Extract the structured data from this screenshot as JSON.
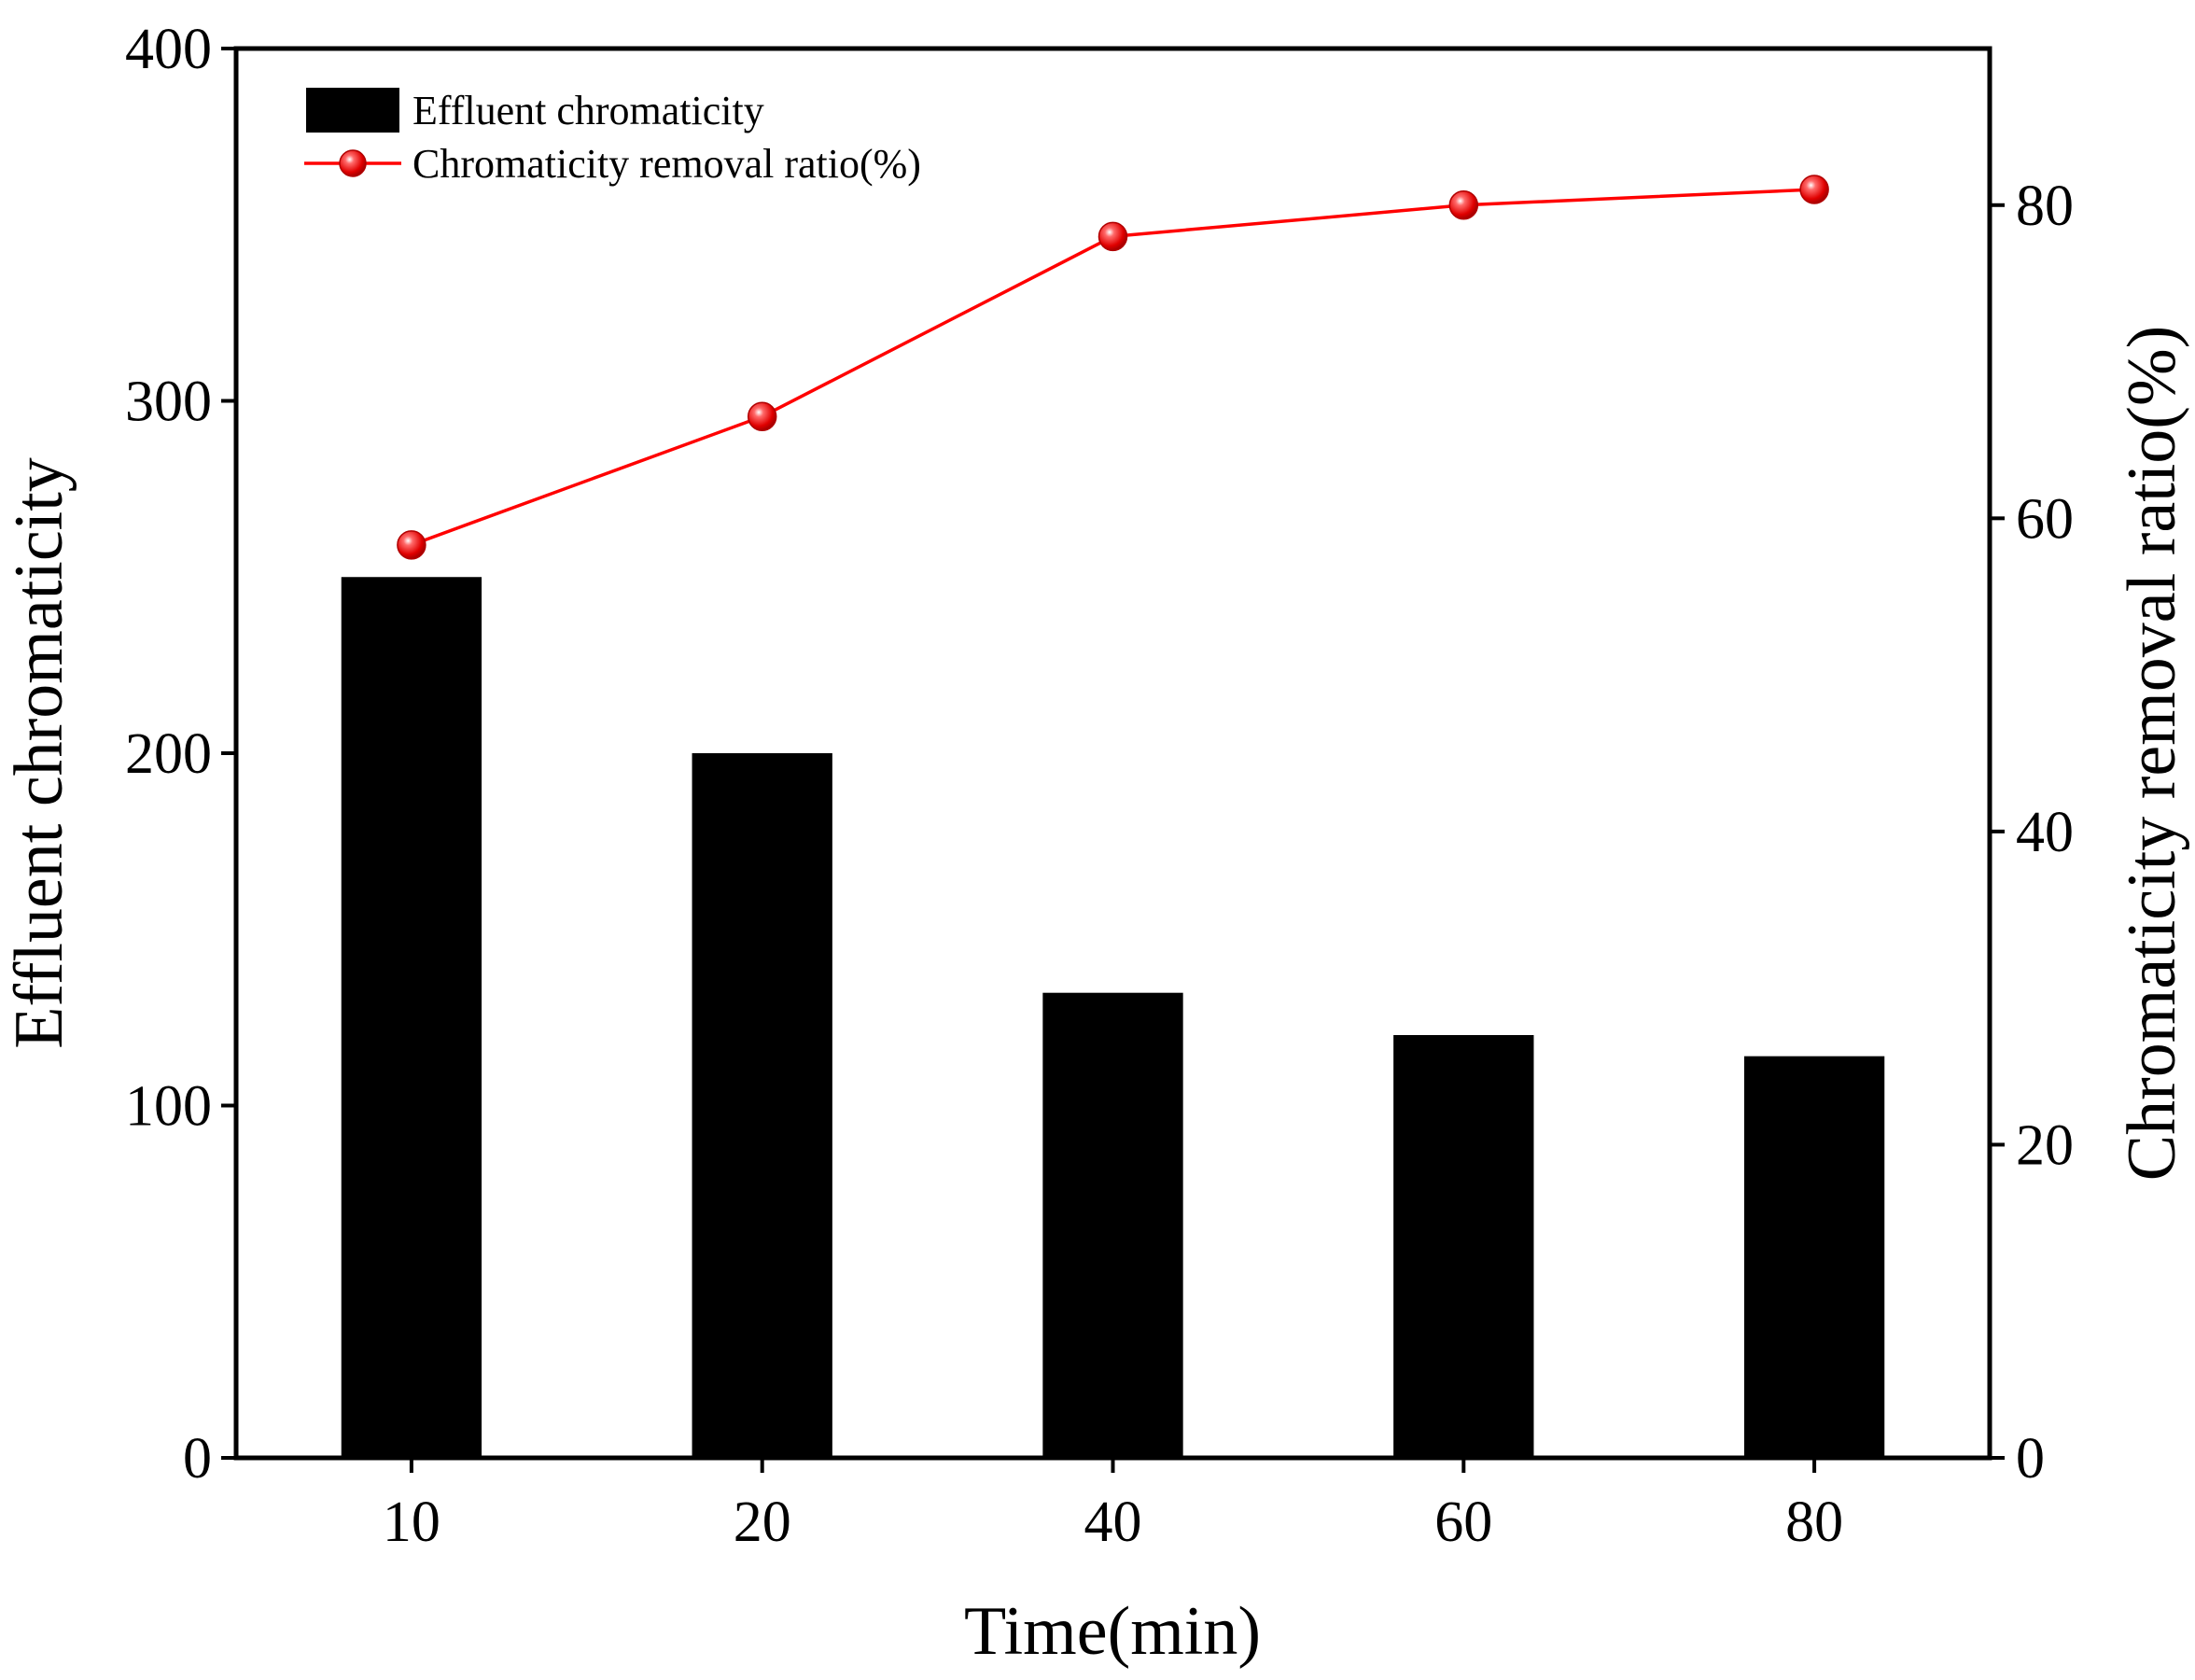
{
  "chart_data": {
    "type": "bar+line",
    "categories": [
      "10",
      "20",
      "40",
      "60",
      "80"
    ],
    "xlabel": "Time(min)",
    "ylabel_left": "Effluent chromaticity",
    "ylabel_right": "Chromaticity removal ratio(%)",
    "ylim_left": [
      0,
      400
    ],
    "ylim_right": [
      0,
      90
    ],
    "yticks_left": [
      "0",
      "100",
      "200",
      "300",
      "400"
    ],
    "yticks_right": [
      "0",
      "20",
      "40",
      "60",
      "80"
    ],
    "grid": false,
    "legend_position": "top-left",
    "series": [
      {
        "name": "Effluent chromaticity",
        "type": "bar",
        "axis": "left",
        "color": "#000000",
        "values": [
          250,
          200,
          132,
          120,
          114
        ]
      },
      {
        "name": "Chromaticity removal ratio(%)",
        "type": "line",
        "axis": "right",
        "color": "#ff0000",
        "values": [
          58.3,
          66.5,
          78,
          80,
          81
        ]
      }
    ]
  }
}
